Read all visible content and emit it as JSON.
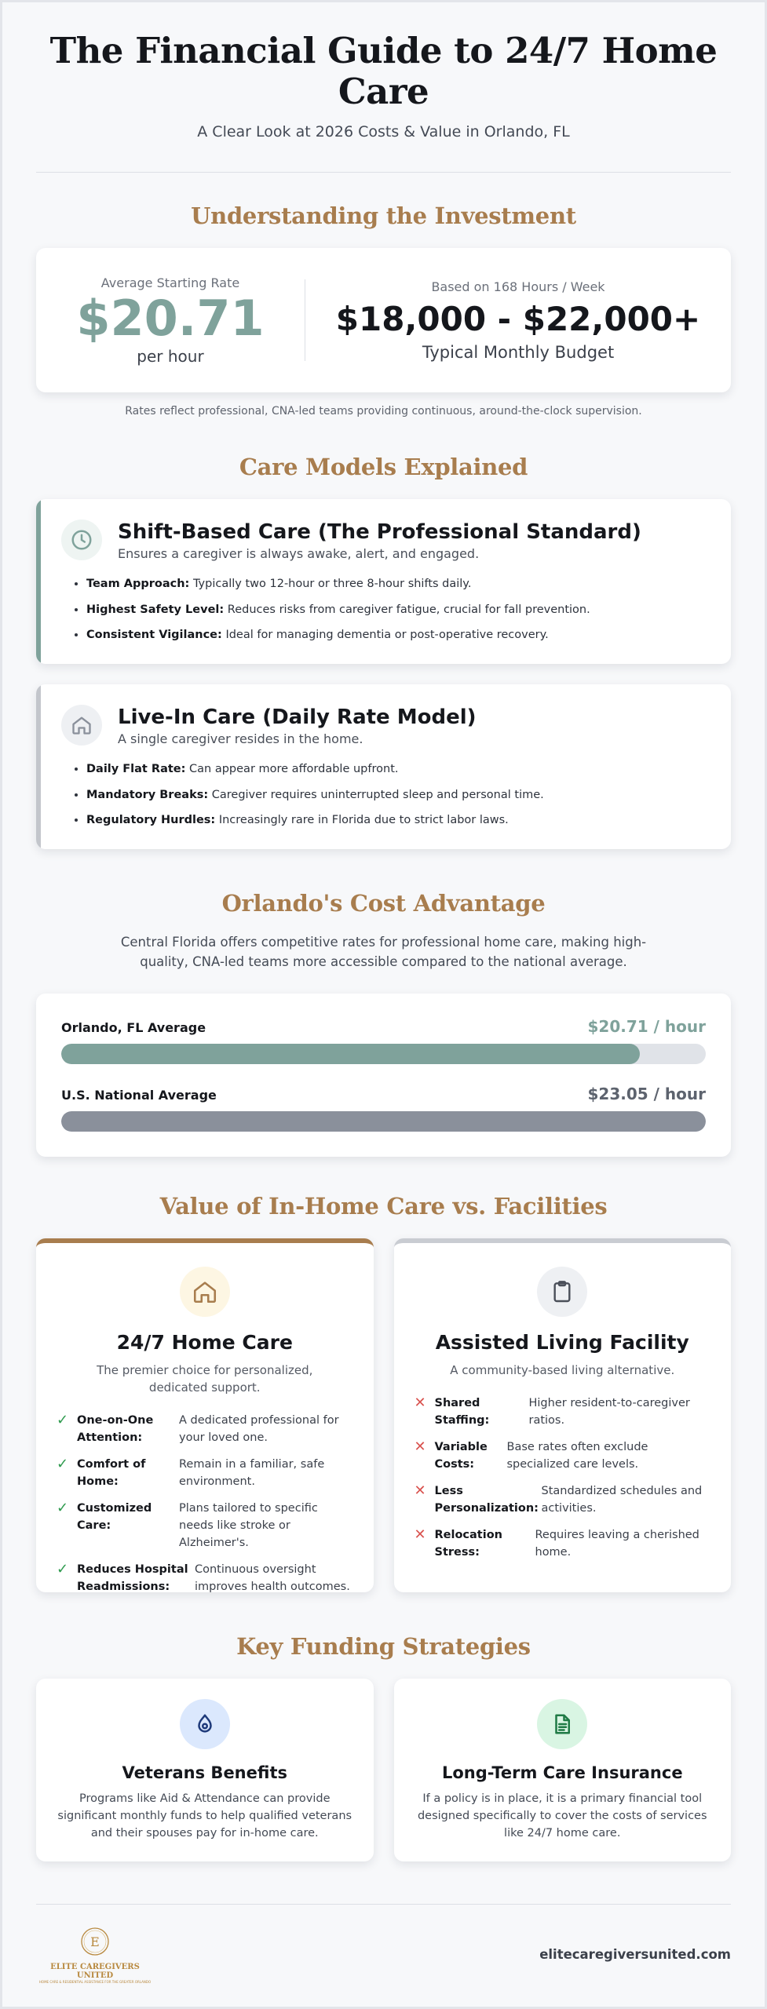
{
  "header": {
    "title": "The Financial Guide to 24/7 Home Care",
    "subtitle": "A Clear Look at 2026 Costs & Value in Orlando, FL"
  },
  "investment": {
    "section_title": "Understanding the Investment",
    "rate_caption": "Average Starting Rate",
    "rate_value": "$20.71",
    "rate_unit": "per hour",
    "budget_caption": "Based on 168 Hours / Week",
    "budget_value": "$18,000 - $22,000+",
    "budget_label": "Typical Monthly Budget",
    "note": "Rates reflect professional, CNA-led teams providing continuous, around-the-clock supervision."
  },
  "care_models": {
    "section_title": "Care Models Explained",
    "models": [
      {
        "title": "Shift-Based Care (The Professional Standard)",
        "tagline": "Ensures a caregiver is always awake, alert, and engaged.",
        "icon": "clock-icon",
        "accent": "#7fa29b",
        "points": [
          {
            "label": "Team Approach:",
            "text": "Typically two 12-hour or three 8-hour shifts daily."
          },
          {
            "label": "Highest Safety Level:",
            "text": "Reduces risks from caregiver fatigue, crucial for fall prevention."
          },
          {
            "label": "Consistent Vigilance:",
            "text": "Ideal for managing dementia or post-operative recovery."
          }
        ]
      },
      {
        "title": "Live-In Care (Daily Rate Model)",
        "tagline": "A single caregiver resides in the home.",
        "icon": "house-icon",
        "accent": "#c3c6cc",
        "points": [
          {
            "label": "Daily Flat Rate:",
            "text": "Can appear more affordable upfront."
          },
          {
            "label": "Mandatory Breaks:",
            "text": "Caregiver requires uninterrupted sleep and personal time."
          },
          {
            "label": "Regulatory Hurdles:",
            "text": "Increasingly rare in Florida due to strict labor laws."
          }
        ]
      }
    ]
  },
  "cost_advantage": {
    "section_title": "Orlando's Cost Advantage",
    "lead": "Central Florida offers competitive rates for professional home care, making high-quality, CNA-led teams more accessible compared to the national average.",
    "bars": [
      {
        "label": "Orlando, FL Average",
        "value_text": "$20.71 / hour",
        "value": 20.71,
        "fill_fraction": 0.898,
        "color": "#7fa29b"
      },
      {
        "label": "U.S. National Average",
        "value_text": "$23.05 / hour",
        "value": 23.05,
        "fill_fraction": 1.0,
        "color": "#8a909b"
      }
    ]
  },
  "value": {
    "section_title": "Value of In-Home Care vs. Facilities",
    "home": {
      "title": "24/7 Home Care",
      "tagline": "The premier choice for personalized, dedicated support.",
      "icon": "house-icon",
      "accent": "#a87d4e",
      "features": [
        {
          "label": "One-on-One Attention:",
          "text": "A dedicated professional for your loved one."
        },
        {
          "label": "Comfort of Home:",
          "text": "Remain in a familiar, safe environment."
        },
        {
          "label": "Customized Care:",
          "text": "Plans tailored to specific needs like stroke or Alzheimer's."
        },
        {
          "label": "Reduces Hospital Readmissions:",
          "text": "Continuous oversight improves health outcomes."
        }
      ]
    },
    "facility": {
      "title": "Assisted Living Facility",
      "tagline": "A community-based living alternative.",
      "icon": "clipboard-icon",
      "features": [
        {
          "label": "Shared Staffing:",
          "text": "Higher resident-to-caregiver ratios."
        },
        {
          "label": "Variable Costs:",
          "text": "Base rates often exclude specialized care levels."
        },
        {
          "label": "Less Personalization:",
          "text": "Standardized schedules and activities."
        },
        {
          "label": "Relocation Stress:",
          "text": "Requires leaving a cherished home."
        }
      ]
    },
    "check_mark": "✓",
    "cross_mark": "✕"
  },
  "funding": {
    "section_title": "Key Funding Strategies",
    "cards": [
      {
        "title": "Veterans Benefits",
        "text": "Programs like Aid & Attendance can provide significant monthly funds to help qualified veterans and their spouses pay for in-home care.",
        "icon": "medal-icon"
      },
      {
        "title": "Long-Term Care Insurance",
        "text": "If a policy is in place, it is a primary financial tool designed specifically to cover the costs of services like 24/7 home care.",
        "icon": "document-icon"
      }
    ]
  },
  "footer": {
    "logo_letter": "E",
    "logo_name": "ELITE CAREGIVERS UNITED",
    "logo_tagline": "HOME CARE & RESIDENTIAL ASSISTANCE FOR THE GREATER ORLANDO",
    "website": "elitecaregiversunited.com"
  }
}
